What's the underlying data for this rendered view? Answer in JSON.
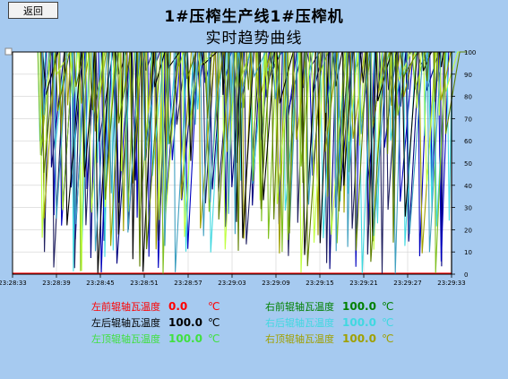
{
  "header": {
    "back_label": "返回",
    "title_line1": "1#压榨生产线1#压榨机",
    "title_line2": "实时趋势曲线"
  },
  "chart_data": {
    "type": "line",
    "ylim": [
      0,
      100
    ],
    "y_ticks": [
      0,
      10,
      20,
      30,
      40,
      50,
      60,
      70,
      80,
      90,
      100
    ],
    "x_ticks": [
      "23:28:33",
      "23:28:39",
      "23:28:45",
      "23:28:51",
      "23:28:57",
      "23:29:03",
      "23:29:09",
      "23:29:15",
      "23:29:21",
      "23:29:27",
      "23:29:33"
    ],
    "grid": true,
    "series": [
      {
        "name": "左前辊轴瓦温度",
        "color": "#ff0000",
        "value": 0.0
      },
      {
        "name": "左后辊轴瓦温度",
        "color": "#000000",
        "value": 100.0
      },
      {
        "name": "左顶辊轴瓦温度",
        "color": "#80ff40",
        "value": 100.0
      },
      {
        "name": "右前辊轴瓦温度",
        "color": "#008000",
        "value": 100.0
      },
      {
        "name": "右后辊轴瓦温度",
        "color": "#40e0e0",
        "value": 100.0
      },
      {
        "name": "右顶辊轴瓦温度",
        "color": "#a0a000",
        "value": 100.0
      }
    ]
  },
  "legend": {
    "items": [
      {
        "label": "左前辊轴瓦温度",
        "value": "0.0",
        "unit": "℃",
        "color": "#ff0000"
      },
      {
        "label": "左后辊轴瓦温度",
        "value": "100.0",
        "unit": "℃",
        "color": "#000000"
      },
      {
        "label": "左顶辊轴瓦温度",
        "value": "100.0",
        "unit": "℃",
        "color": "#40e040"
      },
      {
        "label": "右前辊轴瓦温度",
        "value": "100.0",
        "unit": "℃",
        "color": "#008000"
      },
      {
        "label": "右后辊轴瓦温度",
        "value": "100.0",
        "unit": "℃",
        "color": "#40d8e0"
      },
      {
        "label": "右顶辊轴瓦温度",
        "value": "100.0",
        "unit": "℃",
        "color": "#a0a000"
      }
    ]
  }
}
